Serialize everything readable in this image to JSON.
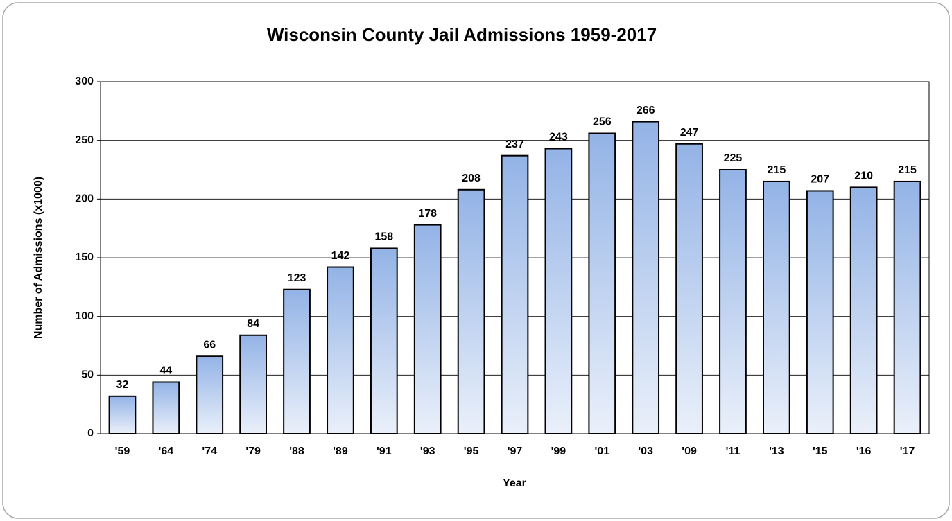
{
  "chart_data": {
    "type": "bar",
    "title": "Wisconsin County Jail Admissions 1959-2017",
    "x_label": "Year",
    "y_label": "Number of Admissions (x1000)",
    "categories": [
      "'59",
      "'64",
      "'74",
      "'79",
      "'88",
      "'89",
      "'91",
      "'93",
      "'95",
      "'97",
      "'99",
      "'01",
      "'03",
      "'09",
      "'11",
      "'13",
      "'15",
      "'16",
      "'17"
    ],
    "values": [
      32,
      44,
      66,
      84,
      123,
      142,
      158,
      178,
      208,
      237,
      243,
      256,
      266,
      247,
      225,
      215,
      207,
      210,
      215
    ],
    "color": "#93b3e6",
    "ylim": [
      0,
      300
    ],
    "yticks": [
      0,
      50,
      100,
      150,
      200,
      250,
      300
    ],
    "grid": true
  }
}
